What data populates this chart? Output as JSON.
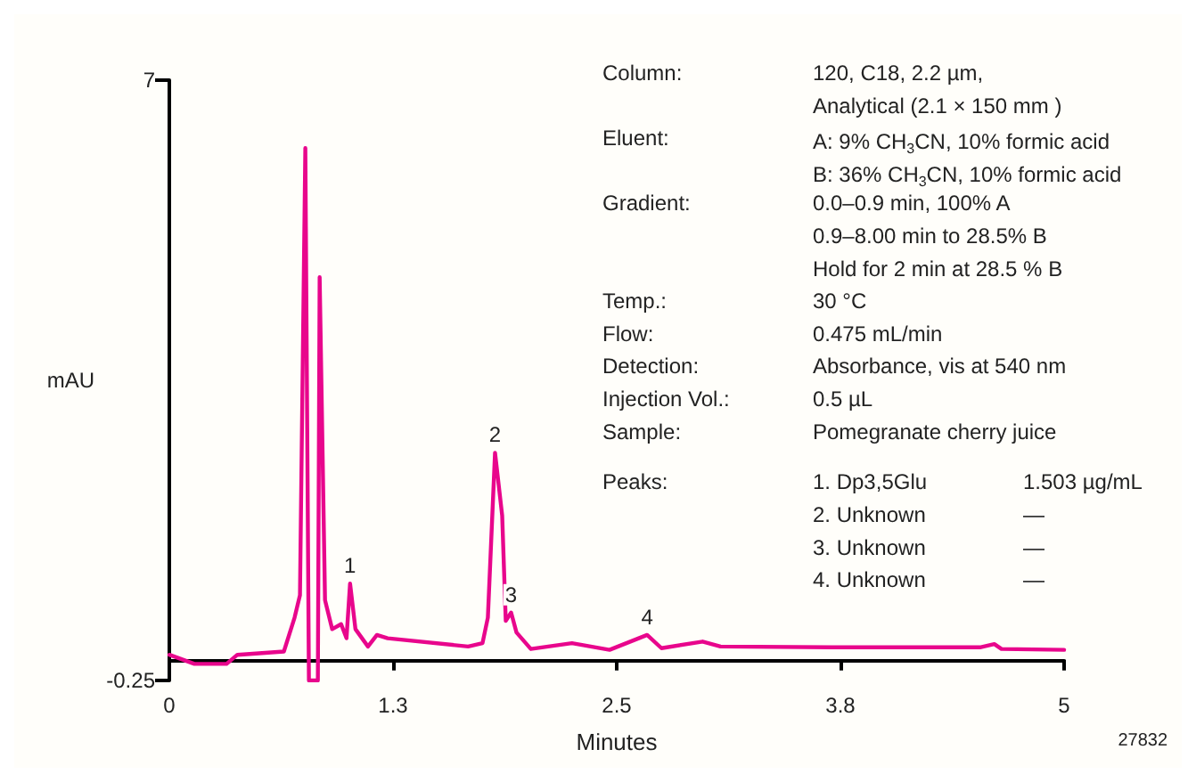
{
  "chart_data": {
    "type": "line",
    "xlabel": "Minutes",
    "ylabel": "mAU",
    "x": [
      0,
      0.14,
      0.32,
      0.38,
      0.64,
      0.7,
      0.73,
      0.76,
      0.78,
      0.83,
      0.84,
      0.87,
      0.91,
      0.96,
      0.99,
      1.01,
      1.04,
      1.11,
      1.16,
      1.22,
      1.67,
      1.75,
      1.78,
      1.82,
      1.86,
      1.88,
      1.91,
      1.94,
      2.02,
      2.25,
      2.46,
      2.67,
      2.75,
      2.98,
      3.08,
      3.7,
      4.53,
      4.61,
      4.65,
      5.0
    ],
    "series": [
      {
        "color": "#e8068c",
        "values": [
          0.06,
          -0.05,
          -0.05,
          0.06,
          0.1,
          0.51,
          0.78,
          6.18,
          -0.25,
          -0.25,
          4.62,
          0.72,
          0.37,
          0.43,
          0.26,
          0.92,
          0.37,
          0.16,
          0.3,
          0.26,
          0.16,
          0.2,
          0.51,
          2.5,
          1.74,
          0.47,
          0.57,
          0.33,
          0.13,
          0.2,
          0.12,
          0.3,
          0.14,
          0.22,
          0.16,
          0.15,
          0.15,
          0.19,
          0.13,
          0.12
        ]
      }
    ],
    "xlim": [
      0,
      5
    ],
    "xticks": [
      0,
      {
        "value": 1.25,
        "label": "1.3"
      },
      2.5,
      {
        "value": 3.75,
        "label": "3.8"
      },
      5
    ],
    "ylim": [
      -0.25,
      7
    ],
    "yticks": [
      -0.25,
      7
    ],
    "grid": false,
    "marker": "none",
    "line_style": "solid",
    "annotations": [
      {
        "text": "1",
        "x": 1.01,
        "y": 0.92
      },
      {
        "text": "2",
        "x": 1.82,
        "y": 2.5
      },
      {
        "text": "3",
        "x": 1.91,
        "y": 0.57
      },
      {
        "text": "4",
        "x": 2.67,
        "y": 0.3
      },
      "Column:\t120, C18, 2.2 µm,",
      "\tAnalytical (2.1 × 150 mm )",
      "Eluent:\tA: 9% CH$_{3}$CN, 10% formic acid",
      "\tB: 36% CH$_{3}$CN, 10% formic acid",
      "Gradient:\t0.0–0.9 min, 100% A",
      "\t0.9–8.00 min to 28.5% B",
      "\tHold for 2 min at 28.5 % B",
      "Temp.:\t30 °C",
      "Flow:\t0.475 mL/min",
      "Detection:\tAbsorbance, vis at 540 nm",
      "Injection Vol.:\t0.5 µL",
      "Sample:\tPomegranate cherry juice",
      "Peaks:\t1. Dp3,5Glu\t1.503 µg/mL",
      "\t2. Unknown\t—",
      "\t3. Unknown\t—",
      "\t4. Unknown\t—",
      "27832"
    ]
  }
}
